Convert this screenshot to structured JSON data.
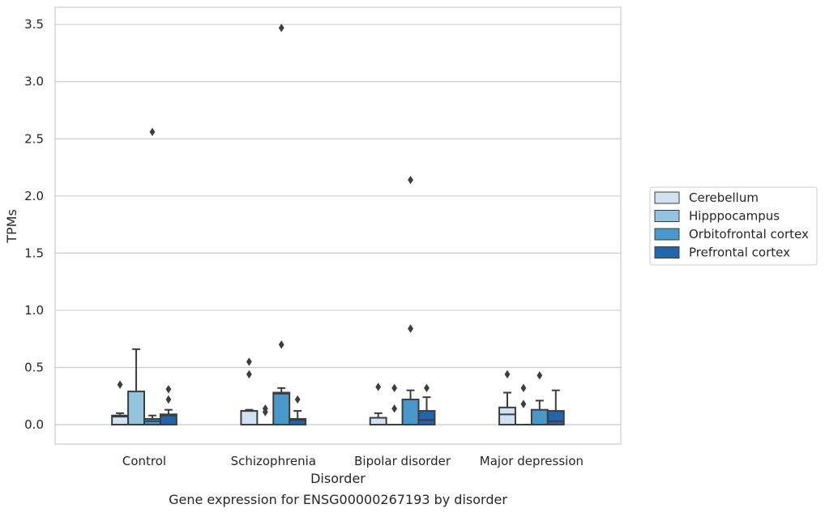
{
  "caption": "Gene expression for ENSG00000267193 by disorder",
  "chart_data": {
    "type": "box",
    "xlabel": "Disorder",
    "ylabel": "TPMs",
    "ylim": [
      -0.17,
      3.65
    ],
    "yticks": [
      0.0,
      0.5,
      1.0,
      1.5,
      2.0,
      2.5,
      3.0,
      3.5
    ],
    "ytick_labels": [
      "0.0",
      "0.5",
      "1.0",
      "1.5",
      "2.0",
      "2.5",
      "3.0",
      "3.5"
    ],
    "grid": "horizontal",
    "legend_position": "right",
    "categories": [
      "Control",
      "Schizophrenia",
      "Bipolar disorder",
      "Major depression"
    ],
    "series": [
      {
        "name": "Cerebellum",
        "color": "#d0e1f2",
        "boxes": [
          {
            "min": 0.0,
            "q1": 0.0,
            "median": 0.07,
            "q3": 0.08,
            "max": 0.1,
            "outliers": [
              0.35
            ]
          },
          {
            "min": 0.0,
            "q1": 0.0,
            "median": 0.12,
            "q3": 0.12,
            "max": 0.13,
            "outliers": [
              0.44,
              0.55
            ]
          },
          {
            "min": 0.0,
            "q1": 0.0,
            "median": 0.0,
            "q3": 0.06,
            "max": 0.1,
            "outliers": [
              0.33
            ]
          },
          {
            "min": 0.0,
            "q1": 0.0,
            "median": 0.09,
            "q3": 0.15,
            "max": 0.28,
            "outliers": [
              0.44
            ]
          }
        ]
      },
      {
        "name": "Hipppocampus",
        "color": "#94c4df",
        "boxes": [
          {
            "min": 0.0,
            "q1": 0.0,
            "median": 0.0,
            "q3": 0.29,
            "max": 0.66,
            "outliers": []
          },
          {
            "min": 0.0,
            "q1": 0.0,
            "median": 0.0,
            "q3": 0.0,
            "max": 0.0,
            "outliers": [
              0.11,
              0.14
            ]
          },
          {
            "min": 0.0,
            "q1": 0.0,
            "median": 0.0,
            "q3": 0.0,
            "max": 0.0,
            "outliers": [
              0.14,
              0.32
            ]
          },
          {
            "min": 0.0,
            "q1": 0.0,
            "median": 0.0,
            "q3": 0.0,
            "max": 0.0,
            "outliers": [
              0.18,
              0.32
            ]
          }
        ]
      },
      {
        "name": "Orbitofrontal cortex",
        "color": "#4a98c9",
        "boxes": [
          {
            "min": 0.0,
            "q1": 0.0,
            "median": 0.03,
            "q3": 0.05,
            "max": 0.08,
            "outliers": [
              2.56
            ]
          },
          {
            "min": 0.0,
            "q1": 0.0,
            "median": 0.27,
            "q3": 0.28,
            "max": 0.32,
            "outliers": [
              0.7,
              3.47
            ]
          },
          {
            "min": 0.0,
            "q1": 0.0,
            "median": 0.0,
            "q3": 0.22,
            "max": 0.3,
            "outliers": [
              0.84,
              2.14
            ]
          },
          {
            "min": 0.0,
            "q1": 0.0,
            "median": 0.0,
            "q3": 0.13,
            "max": 0.21,
            "outliers": [
              0.43
            ]
          }
        ]
      },
      {
        "name": "Prefrontal cortex",
        "color": "#2166ac",
        "boxes": [
          {
            "min": 0.0,
            "q1": 0.0,
            "median": 0.08,
            "q3": 0.09,
            "max": 0.13,
            "outliers": [
              0.22,
              0.31
            ]
          },
          {
            "min": 0.0,
            "q1": 0.0,
            "median": 0.04,
            "q3": 0.05,
            "max": 0.12,
            "outliers": [
              0.22
            ]
          },
          {
            "min": 0.0,
            "q1": 0.0,
            "median": 0.04,
            "q3": 0.12,
            "max": 0.24,
            "outliers": [
              0.32
            ]
          },
          {
            "min": 0.0,
            "q1": 0.0,
            "median": 0.03,
            "q3": 0.12,
            "max": 0.3,
            "outliers": []
          }
        ]
      }
    ]
  }
}
